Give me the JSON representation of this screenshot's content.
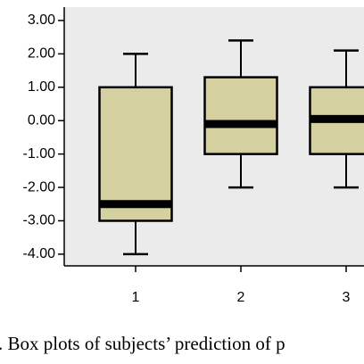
{
  "chart_data": {
    "type": "box",
    "categories": [
      "1",
      "2",
      "3"
    ],
    "boxes": [
      {
        "whisker_low": -4,
        "q1": -3,
        "median": -2.5,
        "q3": 1,
        "whisker_high": 2
      },
      {
        "whisker_low": -2,
        "q1": -1,
        "median": -0.1,
        "q3": 1.3,
        "whisker_high": 2.4
      },
      {
        "whisker_low": -2,
        "q1": -1,
        "median": 0.05,
        "q3": 1,
        "whisker_high": 2.1
      }
    ],
    "color": "#d5d09f",
    "ylim": [
      -4.35,
      3.4
    ],
    "yticks": [
      {
        "value": 3,
        "label": "3.00"
      },
      {
        "value": 2,
        "label": "2.00"
      },
      {
        "value": 1,
        "label": "1.00"
      },
      {
        "value": 0,
        "label": "0.00"
      },
      {
        "value": -1,
        "label": "-1.00"
      },
      {
        "value": -2,
        "label": "-2.00"
      },
      {
        "value": -3,
        "label": "-3.00"
      },
      {
        "value": -4,
        "label": "-4.00"
      }
    ],
    "caption": ". Box plots of subjects’ prediction of p"
  }
}
